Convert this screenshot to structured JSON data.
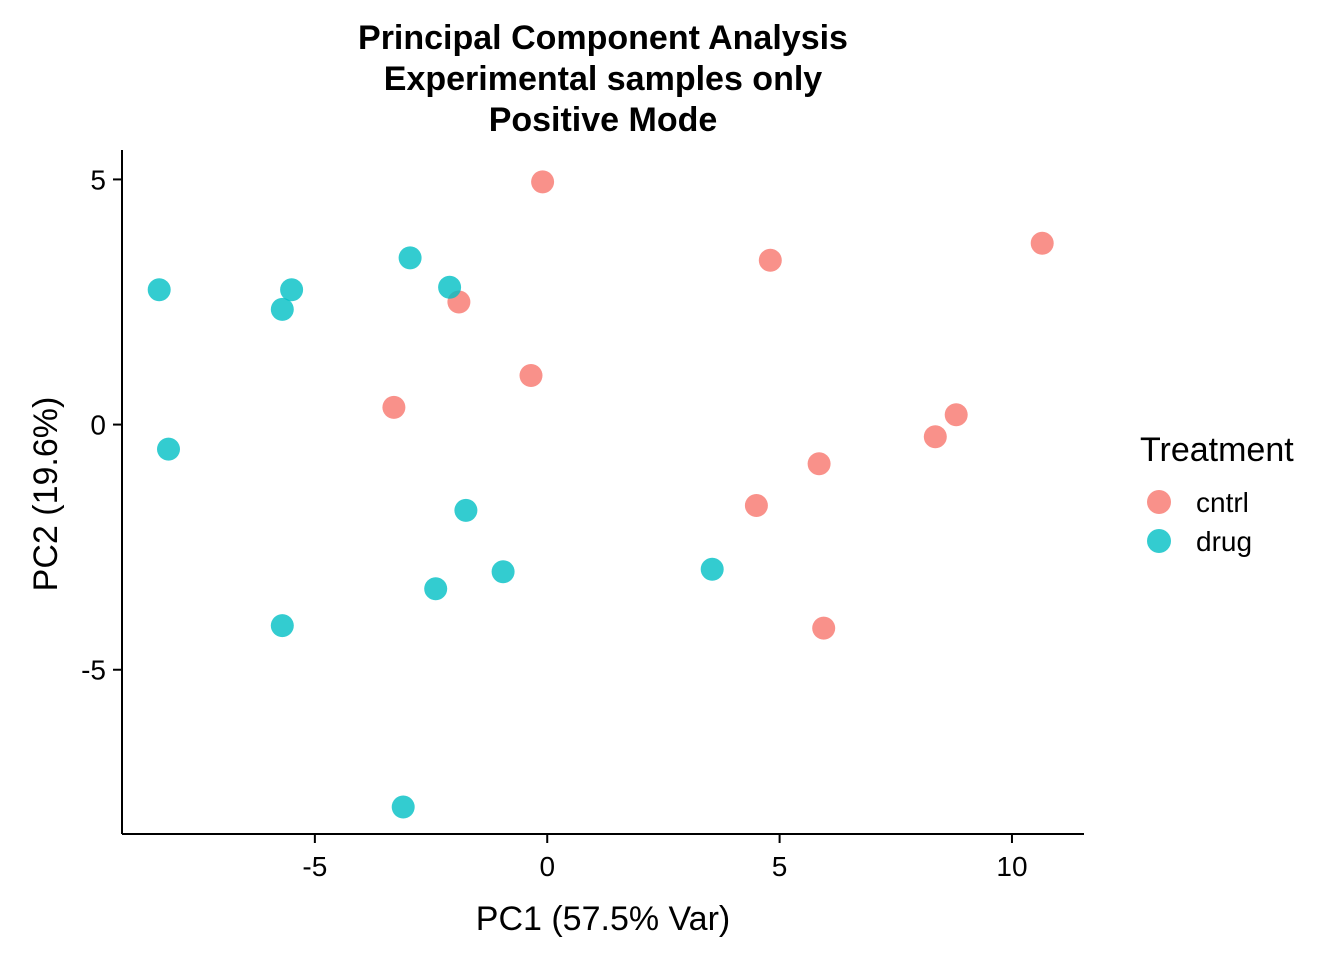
{
  "chart_data": {
    "type": "scatter",
    "title_lines": [
      "Principal Component Analysis",
      "Experimental samples only",
      "Positive Mode"
    ],
    "xlabel": "PC1 (57.5% Var)",
    "ylabel": "PC2 (19.6%)",
    "xlim": [
      -9.15,
      11.55
    ],
    "ylim": [
      -8.35,
      5.6
    ],
    "x_ticks": [
      -5,
      0,
      5,
      10
    ],
    "x_tick_labels": [
      "-5",
      "0",
      "5",
      "10"
    ],
    "y_ticks": [
      5,
      0,
      -5
    ],
    "y_tick_labels": [
      "5",
      "0",
      "-5"
    ],
    "grid": false,
    "legend": {
      "title": "Treatment",
      "position": "right",
      "entries": [
        "cntrl",
        "drug"
      ]
    },
    "series": [
      {
        "name": "cntrl",
        "color": "#F8766D",
        "points": [
          {
            "x": -0.1,
            "y": 4.95
          },
          {
            "x": 4.8,
            "y": 3.35
          },
          {
            "x": 10.65,
            "y": 3.7
          },
          {
            "x": -1.9,
            "y": 2.5
          },
          {
            "x": -0.35,
            "y": 1.0
          },
          {
            "x": -3.3,
            "y": 0.35
          },
          {
            "x": 8.8,
            "y": 0.2
          },
          {
            "x": 8.35,
            "y": -0.25
          },
          {
            "x": 5.85,
            "y": -0.8
          },
          {
            "x": 4.5,
            "y": -1.65
          },
          {
            "x": 5.95,
            "y": -4.15
          }
        ]
      },
      {
        "name": "drug",
        "color": "#00BFC4",
        "points": [
          {
            "x": -8.35,
            "y": 2.75
          },
          {
            "x": -5.5,
            "y": 2.75
          },
          {
            "x": -5.7,
            "y": 2.35
          },
          {
            "x": -2.95,
            "y": 3.4
          },
          {
            "x": -2.1,
            "y": 2.8
          },
          {
            "x": -8.15,
            "y": -0.5
          },
          {
            "x": -1.75,
            "y": -1.75
          },
          {
            "x": -0.95,
            "y": -3.0
          },
          {
            "x": -2.4,
            "y": -3.35
          },
          {
            "x": 3.55,
            "y": -2.95
          },
          {
            "x": -5.7,
            "y": -4.1
          },
          {
            "x": -3.1,
            "y": -7.8
          }
        ]
      }
    ]
  }
}
